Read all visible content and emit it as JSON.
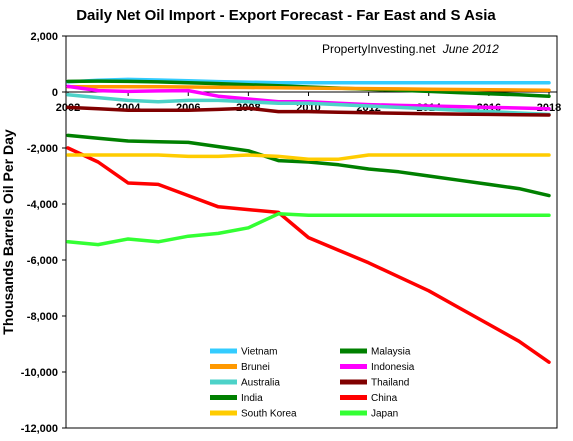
{
  "chart_data": {
    "type": "line",
    "title": "Daily Net Oil Import - Export Forecast -  Far East and S Asia",
    "annotation": {
      "source": "PropertyInvesting.net",
      "date": "June 2012"
    },
    "ylabel": "Thousands Barrels Oil Per Day",
    "xlabel": "",
    "ylim": [
      -12000,
      2000
    ],
    "xlim": [
      2002,
      2018
    ],
    "yticks": [
      2000,
      0,
      -2000,
      -4000,
      -6000,
      -8000,
      -10000,
      -12000
    ],
    "ytick_labels": [
      "2,000",
      "0",
      "-2,000",
      "-4,000",
      "-6,000",
      "-8,000",
      "-10,000",
      "-12,000"
    ],
    "xticks": [
      2002,
      2004,
      2006,
      2008,
      2010,
      2012,
      2014,
      2016,
      2018
    ],
    "xtick_labels": [
      "2002",
      "2004",
      "2006",
      "2008",
      "2010",
      "2012",
      "2014",
      "2016",
      "2018"
    ],
    "grid": false,
    "legend_placement": "bottom",
    "x": [
      2002,
      2003,
      2004,
      2005,
      2006,
      2007,
      2008,
      2009,
      2010,
      2011,
      2012,
      2013,
      2014,
      2015,
      2016,
      2017,
      2018
    ],
    "series": [
      {
        "name": "Vietnam",
        "color": "#33ccff",
        "values": [
          360,
          420,
          450,
          430,
          400,
          370,
          350,
          330,
          330,
          330,
          330,
          330,
          330,
          330,
          330,
          330,
          330
        ]
      },
      {
        "name": "Malaysia",
        "color": "#008000",
        "values": [
          380,
          390,
          380,
          360,
          330,
          300,
          260,
          220,
          180,
          140,
          100,
          60,
          20,
          -20,
          -60,
          -100,
          -150
        ]
      },
      {
        "name": "Brunei",
        "color": "#ff9900",
        "values": [
          190,
          190,
          190,
          190,
          180,
          170,
          160,
          150,
          140,
          130,
          120,
          110,
          100,
          90,
          80,
          70,
          60
        ]
      },
      {
        "name": "Indonesia",
        "color": "#ff00ff",
        "values": [
          200,
          50,
          20,
          40,
          50,
          -150,
          -250,
          -350,
          -350,
          -400,
          -450,
          -480,
          -500,
          -520,
          -550,
          -570,
          -600
        ]
      },
      {
        "name": "Australia",
        "color": "#4dd2c8",
        "values": [
          -100,
          -200,
          -300,
          -350,
          -300,
          -300,
          -350,
          -400,
          -400,
          -450,
          -500,
          -550,
          -600,
          -650,
          -700,
          -750,
          -800
        ]
      },
      {
        "name": "Thailand",
        "color": "#800000",
        "values": [
          -550,
          -600,
          -650,
          -650,
          -650,
          -620,
          -580,
          -700,
          -700,
          -720,
          -740,
          -760,
          -780,
          -790,
          -800,
          -810,
          -820
        ]
      },
      {
        "name": "India",
        "color": "#008000",
        "values": [
          -1550,
          -1650,
          -1750,
          -1780,
          -1800,
          -1950,
          -2100,
          -2450,
          -2500,
          -2600,
          -2750,
          -2850,
          -3000,
          -3150,
          -3300,
          -3450,
          -3700
        ]
      },
      {
        "name": "China",
        "color": "#ff0000",
        "values": [
          -2000,
          -2500,
          -3250,
          -3300,
          -3700,
          -4100,
          -4200,
          -4300,
          -5200,
          -5650,
          -6100,
          -6600,
          -7100,
          -7700,
          -8300,
          -8900,
          -9650
        ]
      },
      {
        "name": "South Korea",
        "color": "#ffcc00",
        "values": [
          -2250,
          -2250,
          -2250,
          -2250,
          -2300,
          -2300,
          -2250,
          -2300,
          -2400,
          -2400,
          -2250,
          -2250,
          -2250,
          -2250,
          -2250,
          -2250,
          -2250
        ]
      },
      {
        "name": "Japan",
        "color": "#33ff33",
        "values": [
          -5350,
          -5450,
          -5250,
          -5350,
          -5150,
          -5050,
          -4850,
          -4350,
          -4400,
          -4400,
          -4400,
          -4400,
          -4400,
          -4400,
          -4400,
          -4400,
          -4400
        ]
      }
    ]
  }
}
